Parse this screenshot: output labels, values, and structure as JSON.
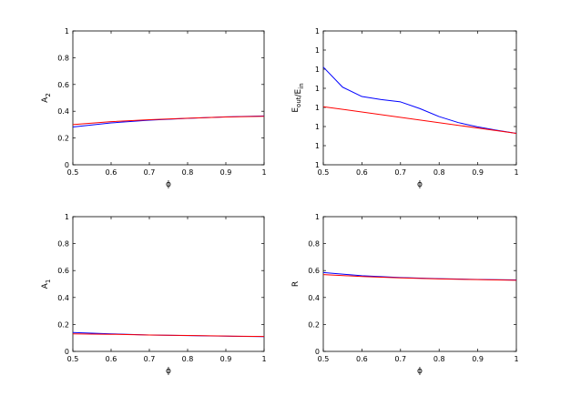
{
  "chart_data": [
    {
      "type": "line",
      "xlabel": "ϕ",
      "ylabel": "A",
      "ylabel_sub": "2",
      "xlim": [
        0.5,
        1.0
      ],
      "ylim": [
        0,
        1
      ],
      "x_ticks": [
        "0.5",
        "0.6",
        "0.7",
        "0.8",
        "0.9",
        "1"
      ],
      "y_ticks": [
        "0",
        "0.2",
        "0.4",
        "0.6",
        "0.8",
        "1"
      ],
      "grid": false,
      "series": [
        {
          "color": "#0000ff",
          "x": [
            0.5,
            0.6,
            0.7,
            0.8,
            0.9,
            1.0
          ],
          "values": [
            0.282,
            0.313,
            0.333,
            0.347,
            0.358,
            0.365
          ]
        },
        {
          "color": "#ff0000",
          "x": [
            0.5,
            0.6,
            0.7,
            0.8,
            0.9,
            1.0
          ],
          "values": [
            0.3,
            0.322,
            0.337,
            0.348,
            0.357,
            0.362
          ]
        }
      ]
    },
    {
      "type": "line",
      "xlabel": "ϕ",
      "ylabel": "E",
      "ylabel_parts": [
        {
          "text": "E",
          "sub": "out"
        },
        {
          "text": "/",
          "sub": ""
        },
        {
          "text": "E",
          "sub": "in"
        }
      ],
      "xlim": [
        0.5,
        1.0
      ],
      "ylim": [
        0,
        1
      ],
      "x_ticks": [
        "0.5",
        "0.6",
        "0.7",
        "0.8",
        "0.9",
        "1"
      ],
      "y_ticks": [
        "1",
        "1",
        "1",
        "1",
        "1",
        "1",
        "1",
        "1"
      ],
      "grid": false,
      "series": [
        {
          "color": "#0000ff",
          "x": [
            0.5,
            0.55,
            0.6,
            0.65,
            0.7,
            0.75,
            0.8,
            0.85,
            0.9,
            0.95,
            1.0
          ],
          "values": [
            0.73,
            0.58,
            0.51,
            0.487,
            0.47,
            0.42,
            0.36,
            0.315,
            0.283,
            0.258,
            0.235
          ]
        },
        {
          "color": "#ff0000",
          "x": [
            0.5,
            1.0
          ],
          "values": [
            0.434,
            0.235
          ]
        }
      ]
    },
    {
      "type": "line",
      "xlabel": "ϕ",
      "ylabel": "A",
      "ylabel_sub": "1",
      "xlim": [
        0.5,
        1.0
      ],
      "ylim": [
        0,
        1
      ],
      "x_ticks": [
        "0.5",
        "0.6",
        "0.7",
        "0.8",
        "0.9",
        "1"
      ],
      "y_ticks": [
        "0",
        "0.2",
        "0.4",
        "0.6",
        "0.8",
        "1"
      ],
      "grid": false,
      "series": [
        {
          "color": "#0000ff",
          "x": [
            0.5,
            0.6,
            0.7,
            0.8,
            0.9,
            1.0
          ],
          "values": [
            0.14,
            0.13,
            0.122,
            0.117,
            0.113,
            0.11
          ]
        },
        {
          "color": "#ff0000",
          "x": [
            0.5,
            0.6,
            0.7,
            0.8,
            0.9,
            1.0
          ],
          "values": [
            0.13,
            0.127,
            0.122,
            0.118,
            0.114,
            0.111
          ]
        }
      ]
    },
    {
      "type": "line",
      "xlabel": "ϕ",
      "ylabel": "R",
      "xlim": [
        0.5,
        1.0
      ],
      "ylim": [
        0,
        1
      ],
      "x_ticks": [
        "0.5",
        "0.6",
        "0.7",
        "0.8",
        "0.9",
        "1"
      ],
      "y_ticks": [
        "0",
        "0.2",
        "0.4",
        "0.6",
        "0.8",
        "1"
      ],
      "grid": false,
      "series": [
        {
          "color": "#0000ff",
          "x": [
            0.5,
            0.6,
            0.7,
            0.8,
            0.9,
            1.0
          ],
          "values": [
            0.585,
            0.562,
            0.548,
            0.54,
            0.534,
            0.53
          ]
        },
        {
          "color": "#ff0000",
          "x": [
            0.5,
            0.6,
            0.7,
            0.8,
            0.9,
            1.0
          ],
          "values": [
            0.57,
            0.556,
            0.546,
            0.538,
            0.533,
            0.528
          ]
        }
      ]
    }
  ]
}
